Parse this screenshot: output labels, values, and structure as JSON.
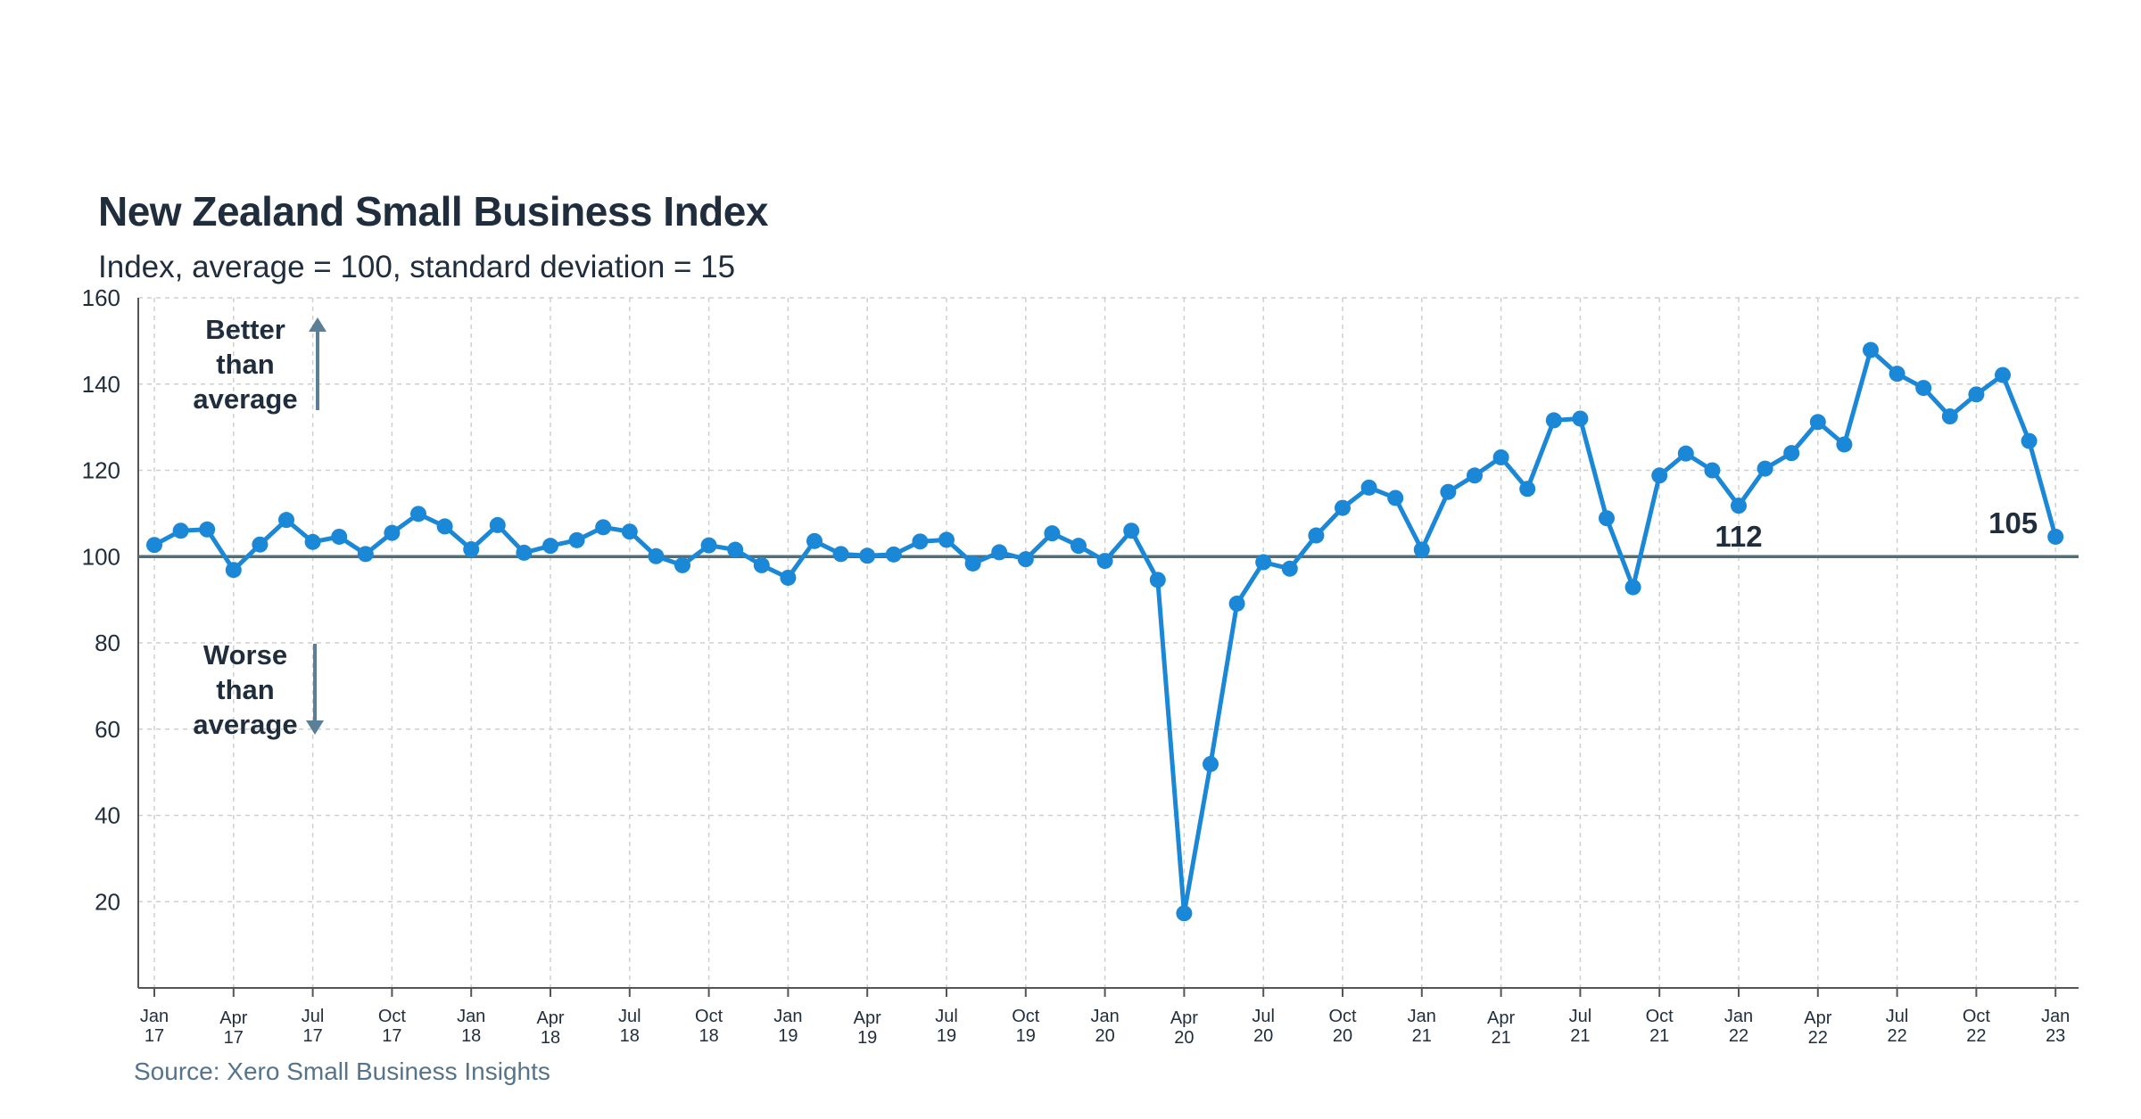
{
  "title": "New Zealand Small Business Index",
  "subtitle": "Index, average = 100, standard deviation = 15",
  "source": "Source: Xero Small Business Insights",
  "colors": {
    "series": "#1a87d7",
    "baseline": "#4f6f78",
    "grid": "#cfcfcf",
    "text": "#1f2d3d",
    "arrow": "#5b7f97"
  },
  "annotations": {
    "better": [
      "Better",
      "than",
      "average"
    ],
    "worse": [
      "Worse",
      "than",
      "average"
    ]
  },
  "chart_data": {
    "type": "line",
    "title": "New Zealand Small Business Index",
    "subtitle": "Index, average = 100, standard deviation = 15",
    "ylim": [
      0,
      160
    ],
    "yticks": [
      20,
      40,
      60,
      80,
      100,
      120,
      140,
      160
    ],
    "baseline": 100,
    "grid": true,
    "x_tick_labels": [
      [
        "Jan",
        "17"
      ],
      [
        "Apr",
        "17"
      ],
      [
        "Jul",
        "17"
      ],
      [
        "Oct",
        "17"
      ],
      [
        "Jan",
        "18"
      ],
      [
        "Apr",
        "18"
      ],
      [
        "Jul",
        "18"
      ],
      [
        "Oct",
        "18"
      ],
      [
        "Jan",
        "19"
      ],
      [
        "Apr",
        "19"
      ],
      [
        "Jul",
        "19"
      ],
      [
        "Oct",
        "19"
      ],
      [
        "Jan",
        "20"
      ],
      [
        "Apr",
        "20"
      ],
      [
        "Jul",
        "20"
      ],
      [
        "Oct",
        "20"
      ],
      [
        "Jan",
        "21"
      ],
      [
        "Apr",
        "21"
      ],
      [
        "Jul",
        "21"
      ],
      [
        "Oct",
        "21"
      ],
      [
        "Jan",
        "22"
      ],
      [
        "Apr",
        "22"
      ],
      [
        "Jul",
        "22"
      ],
      [
        "Oct",
        "22"
      ],
      [
        "Jan",
        "23"
      ]
    ],
    "x_start": "2017-01",
    "values": [
      102.7,
      106.0,
      106.3,
      96.9,
      102.8,
      108.5,
      103.4,
      104.6,
      100.6,
      105.5,
      109.9,
      107.0,
      101.7,
      107.3,
      100.9,
      102.5,
      103.8,
      106.8,
      105.8,
      100.1,
      98.0,
      102.6,
      101.6,
      98.0,
      95.1,
      103.6,
      100.6,
      100.2,
      100.5,
      103.5,
      103.9,
      98.4,
      101.0,
      99.4,
      105.4,
      102.5,
      99.0,
      106.0,
      94.6,
      17.3,
      51.9,
      89.1,
      98.7,
      97.2,
      104.9,
      111.3,
      116.0,
      113.6,
      101.6,
      115.0,
      118.8,
      123.0,
      115.7,
      131.6,
      132.0,
      108.9,
      92.9,
      118.8,
      123.9,
      120.0,
      111.8,
      120.4,
      124.0,
      131.2,
      126.0,
      147.9,
      142.4,
      139.1,
      132.5,
      137.6,
      142.1,
      126.8,
      104.6
    ],
    "data_labels": [
      {
        "label": "112",
        "month": "2022-01"
      },
      {
        "label": "105",
        "month": "2023-01"
      }
    ]
  }
}
